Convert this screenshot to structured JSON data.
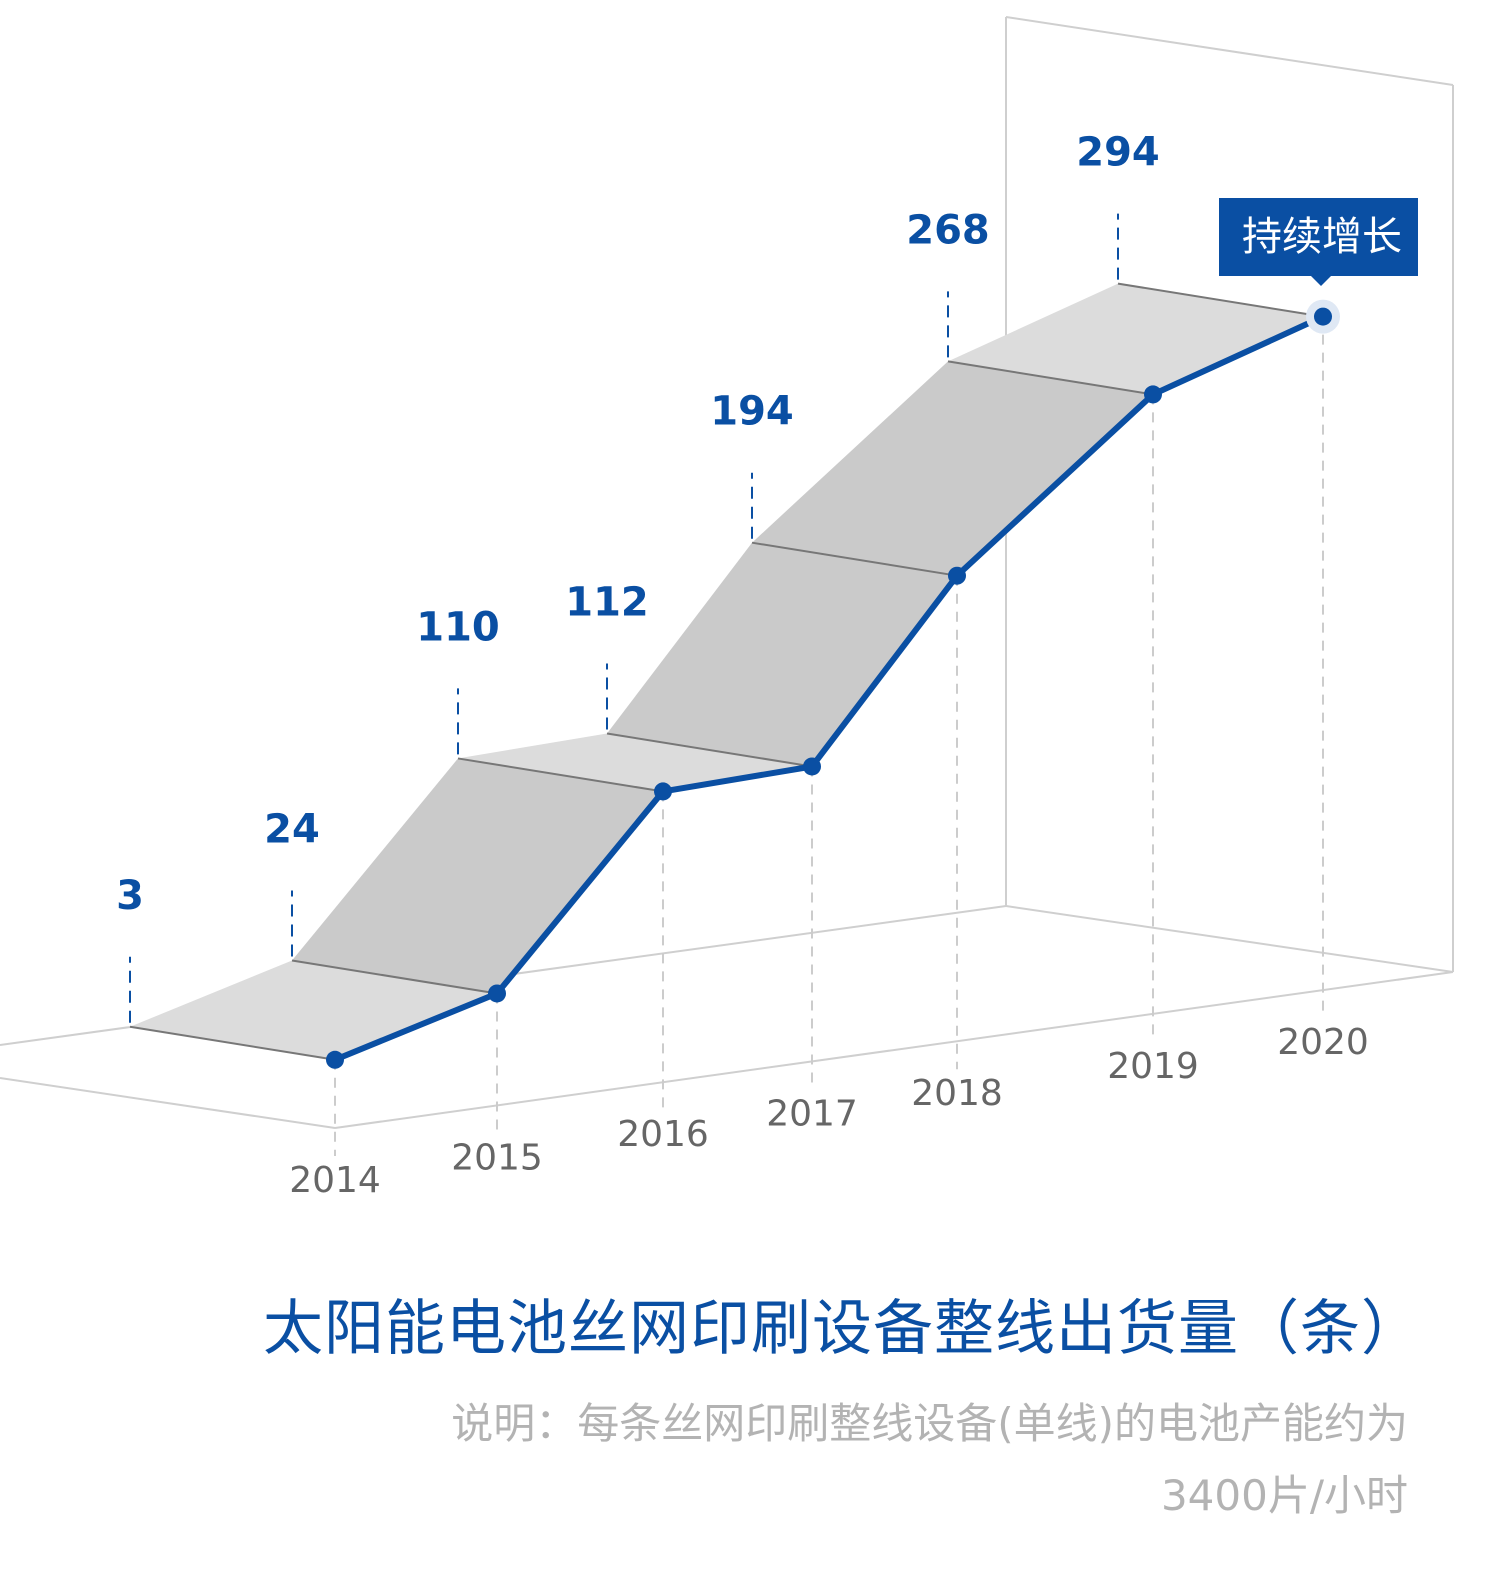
{
  "chart_data": {
    "type": "line",
    "style": "3d-ribbon",
    "title": "太阳能电池丝网印刷设备整线出货量（条）",
    "note": "说明：每条丝网印刷整线设备(单线)的电池产能约为3400片/小时",
    "categories": [
      "2014",
      "2015",
      "2016",
      "2017",
      "2018",
      "2019",
      "2020"
    ],
    "values": [
      3,
      24,
      110,
      112,
      194,
      268,
      294
    ],
    "value_labels": [
      "3",
      "24",
      "110",
      "112",
      "194",
      "268",
      "294"
    ],
    "annotation": "持续增长",
    "grid": false,
    "colors": {
      "line": "#0a4fa3",
      "ribbon_light": "#dcdcdc",
      "ribbon_dark": "#cacaca",
      "axis_text": "#666666",
      "note": "#b3b3b3"
    }
  }
}
